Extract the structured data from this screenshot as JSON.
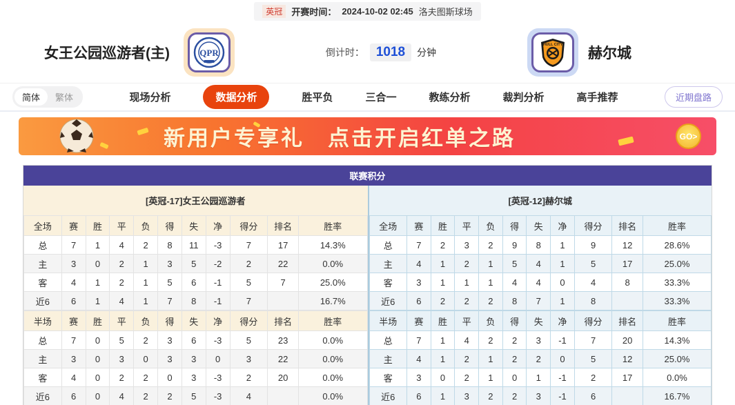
{
  "topbar": {
    "league": "英冠",
    "kickoff_label": "开赛时间：",
    "kickoff_time": "2024-10-02 02:45",
    "venue": "洛夫图斯球场"
  },
  "header": {
    "home_team": "女王公园巡游者(主)",
    "away_team": "赫尔城",
    "countdown_label": "倒计时：",
    "countdown_value": "1018",
    "countdown_unit": "分钟",
    "home_logo_icon": "qpr-crest",
    "away_logo_icon": "hull-city-crest"
  },
  "nav": {
    "lang_simplified": "简体",
    "lang_traditional": "繁体",
    "tabs": [
      "现场分析",
      "数据分析",
      "胜平负",
      "三合一",
      "教练分析",
      "裁判分析",
      "高手推荐"
    ],
    "active_tab": "数据分析",
    "recent_button": "近期盘路"
  },
  "banner": {
    "title_part1": "新用户专享礼",
    "title_part2": "点击开启红单之路",
    "go_label": "GO>",
    "ball_icon": "soccer-ball"
  },
  "table": {
    "title": "联赛积分",
    "home_section": "[英冠-17]女王公园巡游者",
    "away_section": "[英冠-12]赫尔城",
    "full_header": [
      "全场",
      "赛",
      "胜",
      "平",
      "负",
      "得",
      "失",
      "净",
      "得分",
      "排名",
      "胜率"
    ],
    "half_header": [
      "半场",
      "赛",
      "胜",
      "平",
      "负",
      "得",
      "失",
      "净",
      "得分",
      "排名",
      "胜率"
    ],
    "home_full": [
      [
        "总",
        "7",
        "1",
        "4",
        "2",
        "8",
        "11",
        "-3",
        "7",
        "17",
        "14.3%"
      ],
      [
        "主",
        "3",
        "0",
        "2",
        "1",
        "3",
        "5",
        "-2",
        "2",
        "22",
        "0.0%"
      ],
      [
        "客",
        "4",
        "1",
        "2",
        "1",
        "5",
        "6",
        "-1",
        "5",
        "7",
        "25.0%"
      ],
      [
        "近6",
        "6",
        "1",
        "4",
        "1",
        "7",
        "8",
        "-1",
        "7",
        "",
        "16.7%"
      ]
    ],
    "away_full": [
      [
        "总",
        "7",
        "2",
        "3",
        "2",
        "9",
        "8",
        "1",
        "9",
        "12",
        "28.6%"
      ],
      [
        "主",
        "4",
        "1",
        "2",
        "1",
        "5",
        "4",
        "1",
        "5",
        "17",
        "25.0%"
      ],
      [
        "客",
        "3",
        "1",
        "1",
        "1",
        "4",
        "4",
        "0",
        "4",
        "8",
        "33.3%"
      ],
      [
        "近6",
        "6",
        "2",
        "2",
        "2",
        "8",
        "7",
        "1",
        "8",
        "",
        "33.3%"
      ]
    ],
    "home_half": [
      [
        "总",
        "7",
        "0",
        "5",
        "2",
        "3",
        "6",
        "-3",
        "5",
        "23",
        "0.0%"
      ],
      [
        "主",
        "3",
        "0",
        "3",
        "0",
        "3",
        "3",
        "0",
        "3",
        "22",
        "0.0%"
      ],
      [
        "客",
        "4",
        "0",
        "2",
        "2",
        "0",
        "3",
        "-3",
        "2",
        "20",
        "0.0%"
      ],
      [
        "近6",
        "6",
        "0",
        "4",
        "2",
        "2",
        "5",
        "-3",
        "4",
        "",
        "0.0%"
      ]
    ],
    "away_half": [
      [
        "总",
        "7",
        "1",
        "4",
        "2",
        "2",
        "3",
        "-1",
        "7",
        "20",
        "14.3%"
      ],
      [
        "主",
        "4",
        "1",
        "2",
        "1",
        "2",
        "2",
        "0",
        "5",
        "12",
        "25.0%"
      ],
      [
        "客",
        "3",
        "0",
        "2",
        "1",
        "0",
        "1",
        "-1",
        "2",
        "17",
        "0.0%"
      ],
      [
        "近6",
        "6",
        "1",
        "3",
        "2",
        "2",
        "3",
        "-1",
        "6",
        "",
        "16.7%"
      ]
    ]
  },
  "colors": {
    "active_tab": "#e8430d",
    "table_title_bar": "#4a4399",
    "home_section_bg": "#faf1dd",
    "away_section_bg": "#e9f2f7",
    "home_row_red": "#d33128",
    "away_row_blue": "#1f48c5",
    "countdown_value": "#1d4fd7",
    "league_badge": "#cf3b2f",
    "recent_button": "#7f74cf"
  }
}
